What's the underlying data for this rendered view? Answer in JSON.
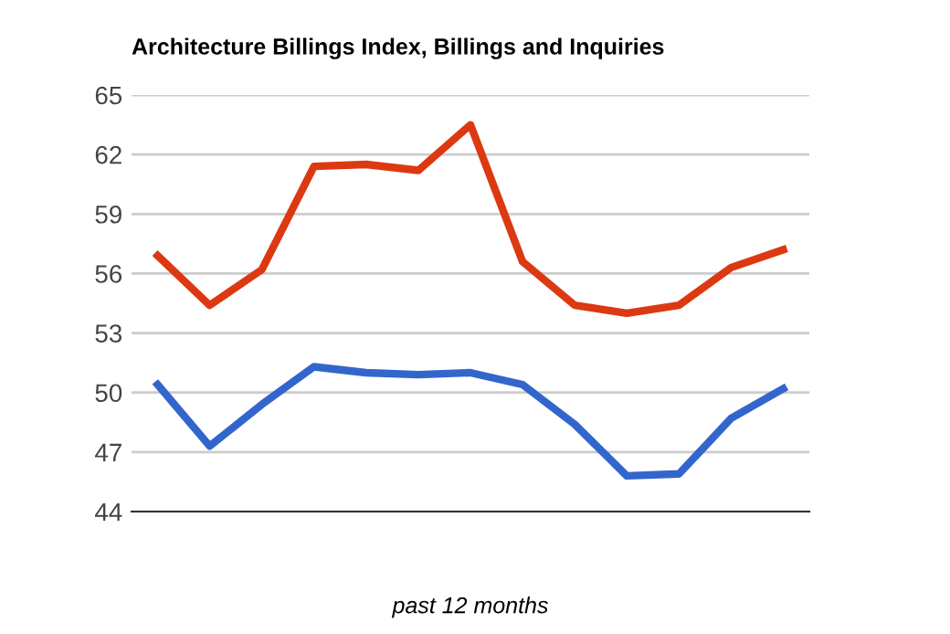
{
  "chart_data": {
    "type": "line",
    "title": "Architecture Billings Index, Billings and Inquiries",
    "xlabel": "past 12 months",
    "categories": [
      null,
      null,
      null,
      null,
      null,
      null,
      null,
      null,
      null,
      null,
      null,
      null,
      null
    ],
    "series": [
      {
        "color": "#dc3912",
        "values": [
          56.9,
          54.4,
          56.2,
          61.4,
          61.5,
          61.2,
          63.5,
          56.6,
          54.4,
          54.0,
          54.4,
          56.3,
          57.2
        ]
      },
      {
        "color": "#3366cc",
        "values": [
          50.4,
          47.3,
          49.4,
          51.3,
          51.0,
          50.9,
          51.0,
          50.4,
          48.4,
          45.8,
          45.9,
          48.7,
          50.2
        ]
      }
    ],
    "ylim": [
      44,
      65
    ],
    "yticks": [
      44,
      47,
      50,
      53,
      56,
      59,
      62,
      65
    ],
    "grid": "y",
    "marker": "none",
    "line_style": "solid"
  }
}
